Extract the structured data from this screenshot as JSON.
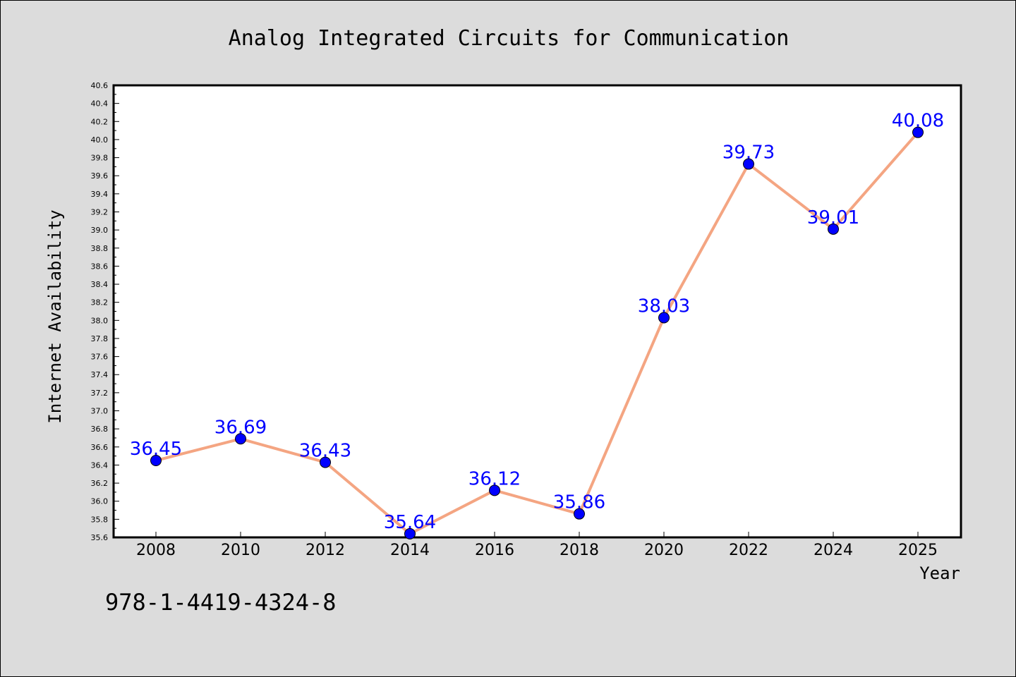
{
  "isbn": "978-1-4419-4324-8",
  "colors": {
    "background": "#dcdcdc",
    "plot_background": "#ffffff",
    "line": "#f4a582",
    "marker": "#0000ff",
    "label": "#0000ff"
  },
  "chart_data": {
    "type": "line",
    "title": "Analog Integrated Circuits for Communication",
    "xlabel": "Year",
    "ylabel": "Internet Availability",
    "categories": [
      "2008",
      "2010",
      "2012",
      "2014",
      "2016",
      "2018",
      "2020",
      "2022",
      "2024",
      "2025"
    ],
    "series": [
      {
        "values": [
          36.45,
          36.69,
          36.43,
          35.64,
          36.12,
          35.86,
          38.03,
          39.73,
          39.01,
          40.08
        ]
      }
    ],
    "data_labels": [
      "36.45",
      "36.69",
      "36.43",
      "35.64",
      "36.12",
      "35.86",
      "38.03",
      "39.73",
      "39.01",
      "40.08"
    ],
    "ylim": [
      35.6,
      40.6
    ],
    "yticks": [
      "35.6",
      "35.8",
      "36.0",
      "36.2",
      "36.4",
      "36.6",
      "36.8",
      "37.0",
      "37.2",
      "37.4",
      "37.6",
      "37.8",
      "38.0",
      "38.2",
      "38.4",
      "38.6",
      "38.8",
      "39.0",
      "39.2",
      "39.4",
      "39.6",
      "39.8",
      "40.0",
      "40.2",
      "40.4",
      "40.6"
    ],
    "grid": false,
    "legend": "none",
    "marker": "circle"
  }
}
